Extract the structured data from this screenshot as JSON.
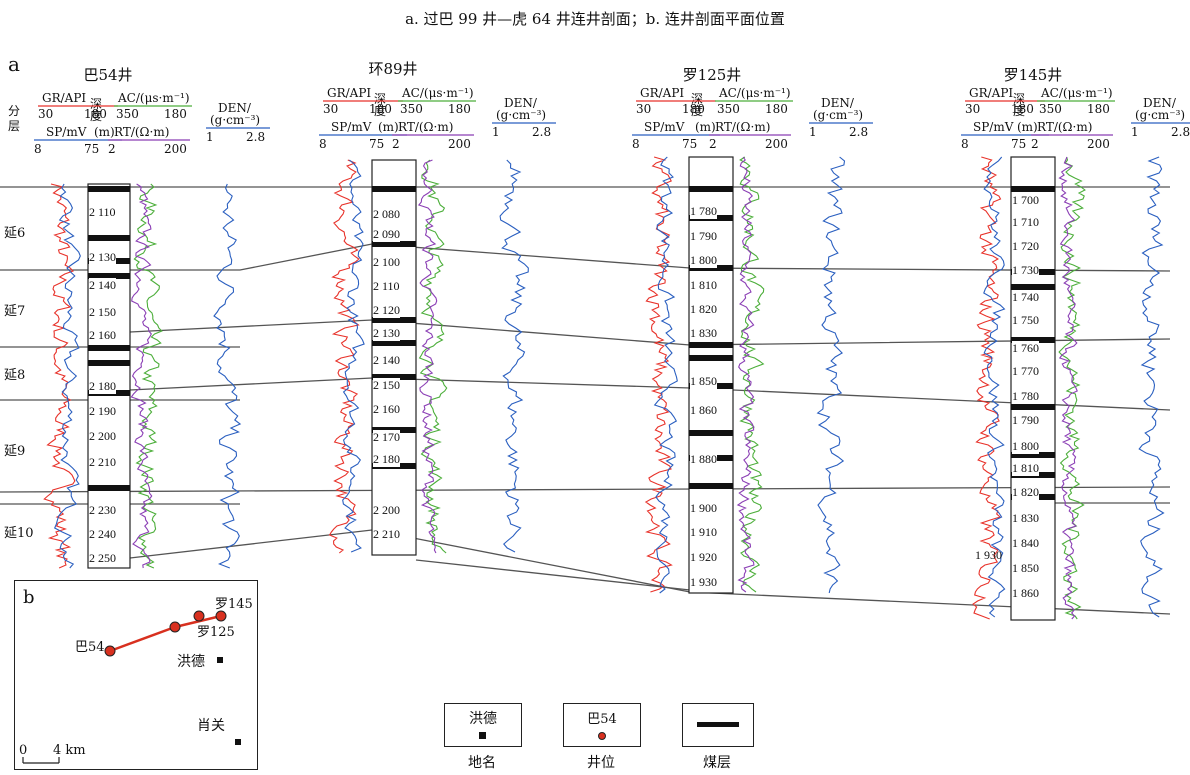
{
  "title": "a. 过巴 99 井—虎 64 井连井剖面；b. 连井剖面平面位置",
  "panel_a_label": "a",
  "panel_b_label": "b",
  "strata_header": "分层",
  "logs": {
    "gr": "GR/API",
    "gr_min": "30",
    "gr_max": "180",
    "ac": "AC/(μs·m⁻¹)",
    "ac_min": "350",
    "ac_max": "180",
    "sp": "SP/mV",
    "sp_min": "8",
    "sp_max": "75",
    "rt": "RT/(Ω·m)",
    "rt_min": "2",
    "rt_max": "200",
    "den": "DEN/",
    "den_unit": "(g·cm⁻³)",
    "den_min": "1",
    "den_max": "2.8",
    "depth": "深度",
    "depth_unit": "(m)"
  },
  "wells": [
    {
      "name": "巴54井",
      "depths": [
        "2 110",
        "2 130",
        "2 140",
        "2 150",
        "2 160",
        "2 180",
        "2 190",
        "2 200",
        "2 210",
        "2 230",
        "2 240",
        "2 250"
      ]
    },
    {
      "name": "环89井",
      "depths": [
        "2 080",
        "2 090",
        "2 100",
        "2 110",
        "2 120",
        "2 130",
        "2 140",
        "2 150",
        "2 160",
        "2 170",
        "2 180",
        "2 200",
        "2 210"
      ]
    },
    {
      "name": "罗125井",
      "depths": [
        "1 780",
        "1 790",
        "1 800",
        "1 810",
        "1 820",
        "1 830",
        "1 850",
        "1 860",
        "1 880",
        "1 900",
        "1 910",
        "1 920",
        "1 930"
      ]
    },
    {
      "name": "罗145井",
      "depths": [
        "1 700",
        "1 710",
        "1 720",
        "1 730",
        "1 740",
        "1 750",
        "1 760",
        "1 770",
        "1 780",
        "1 790",
        "1 800",
        "1 810",
        "1 820",
        "1 830",
        "1 840",
        "1 850",
        "1 860"
      ],
      "extra_depth": "1 930"
    }
  ],
  "zones": [
    "延6",
    "延7",
    "延8",
    "延9",
    "延10"
  ],
  "inset": {
    "wells": [
      "巴54",
      "罗125",
      "罗145"
    ],
    "towns": [
      "洪德",
      "肖关"
    ],
    "scale_start": "0",
    "scale_end": "4 km"
  },
  "legend": [
    {
      "sample": "洪德",
      "caption": "地名"
    },
    {
      "sample": "巴54",
      "caption": "井位"
    },
    {
      "sample": "",
      "caption": "煤层"
    }
  ],
  "colors": {
    "gr": "#e8322a",
    "sp": "#2a5fc0",
    "ac": "#4cae3a",
    "rt": "#8b3fb5",
    "den": "#2a5fc0",
    "coal": "#111111",
    "well_dot": "#d8301f"
  }
}
